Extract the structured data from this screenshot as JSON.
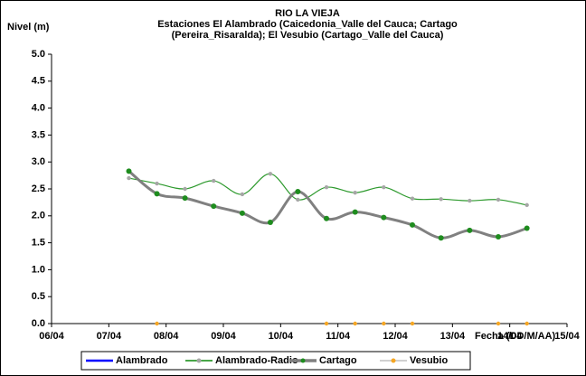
{
  "chart_data": {
    "type": "line",
    "title": "RIO LA VIEJA",
    "subtitle": [
      "Estaciones El Alambrado (Caicedonia_Valle del Cauca; Cartago",
      "(Pereira_Risaralda);  El Vesubio (Cartago_Valle del Cauca)"
    ],
    "y_label": "Nivel (m)",
    "x_label": "Fecha (DD/M/AA)",
    "xlim": [
      6,
      15
    ],
    "xticks": [
      {
        "value": 6,
        "label": "06/04"
      },
      {
        "value": 7,
        "label": "07/04"
      },
      {
        "value": 8,
        "label": "08/04"
      },
      {
        "value": 9,
        "label": "09/04"
      },
      {
        "value": 10,
        "label": "10/04"
      },
      {
        "value": 11,
        "label": "11/04"
      },
      {
        "value": 12,
        "label": "12/04"
      },
      {
        "value": 13,
        "label": "13/04"
      },
      {
        "value": 14,
        "label": "14/04"
      },
      {
        "value": 15,
        "label": "15/04"
      }
    ],
    "ylim": [
      0,
      5
    ],
    "yticks": [
      {
        "value": 0,
        "label": "0.0"
      },
      0.5,
      {
        "value": 1,
        "label": "1.0"
      },
      1.5,
      {
        "value": 2,
        "label": "2.0"
      },
      2.5,
      {
        "value": 3,
        "label": "3.0"
      },
      3.5,
      {
        "value": 4,
        "label": "4.0"
      },
      4.5,
      {
        "value": 5,
        "label": "5.0"
      }
    ],
    "legend": "bottom",
    "series": [
      {
        "name": "Alambrado",
        "color": "#0000ff",
        "marker_color": "#0000ff",
        "x": [],
        "values": []
      },
      {
        "name": "Alambrado-Radio",
        "color": "#2e9a2e",
        "marker_color": "#a6a6a6",
        "x": [
          7.35,
          7.84,
          8.33,
          8.83,
          9.33,
          9.82,
          10.3,
          10.8,
          11.3,
          11.8,
          12.3,
          12.8,
          13.3,
          13.8,
          14.3
        ],
        "values": [
          2.7,
          2.6,
          2.5,
          2.65,
          2.4,
          2.78,
          2.3,
          2.53,
          2.43,
          2.53,
          2.32,
          2.31,
          2.28,
          2.3,
          2.2
        ]
      },
      {
        "name": "Cartago",
        "color": "#808080",
        "marker_color": "#1e8c1e",
        "x": [
          7.35,
          7.84,
          8.33,
          8.83,
          9.33,
          9.82,
          10.3,
          10.8,
          11.3,
          11.8,
          12.3,
          12.8,
          13.3,
          13.8,
          14.3
        ],
        "values": [
          2.83,
          2.41,
          2.33,
          2.18,
          2.05,
          1.88,
          2.45,
          1.95,
          2.07,
          1.97,
          1.83,
          1.59,
          1.73,
          1.61,
          1.77
        ]
      },
      {
        "name": "Vesubio",
        "color": "#c0c0c0",
        "marker_color": "#f5a623",
        "x": [
          7.84,
          10.8,
          11.3,
          11.8,
          12.3,
          13.8,
          14.3
        ],
        "values": [
          0,
          0,
          0,
          0,
          0,
          0,
          0
        ]
      }
    ]
  }
}
